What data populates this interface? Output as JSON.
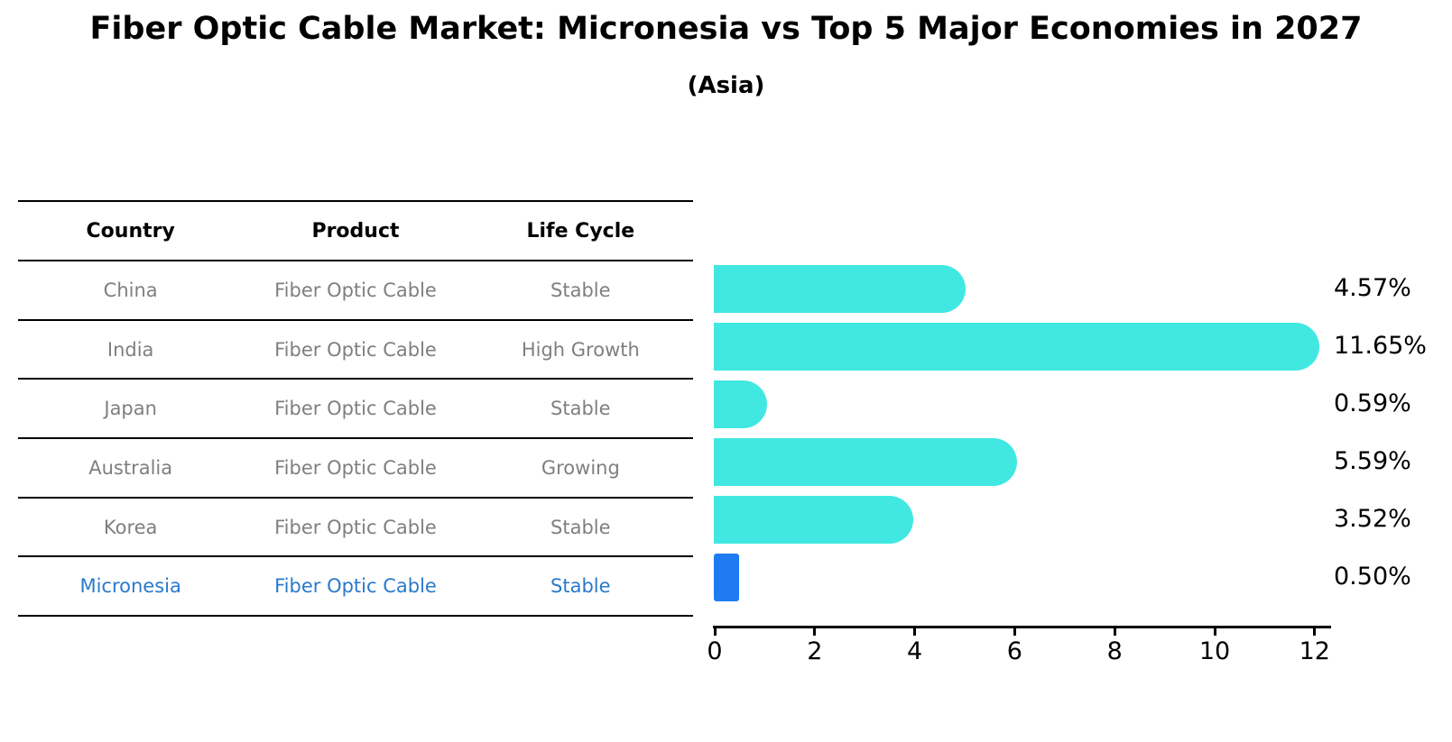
{
  "title": "Fiber Optic Cable Market: Micronesia vs Top 5 Major Economies in 2027",
  "subtitle": "(Asia)",
  "table": {
    "headers": [
      "Country",
      "Product",
      "Life Cycle"
    ],
    "rows": [
      {
        "country": "China",
        "product": "Fiber Optic Cable",
        "life_cycle": "Stable",
        "highlight": false
      },
      {
        "country": "India",
        "product": "Fiber Optic Cable",
        "life_cycle": "High Growth",
        "highlight": false
      },
      {
        "country": "Japan",
        "product": "Fiber Optic Cable",
        "life_cycle": "Stable",
        "highlight": false
      },
      {
        "country": "Australia",
        "product": "Fiber Optic Cable",
        "life_cycle": "Growing",
        "highlight": false
      },
      {
        "country": "Korea",
        "product": "Fiber Optic Cable",
        "life_cycle": "Stable",
        "highlight": true
      }
    ]
  },
  "chart_data": {
    "type": "bar",
    "orientation": "horizontal",
    "categories": [
      "China",
      "India",
      "Japan",
      "Australia",
      "Korea",
      "Micronesia"
    ],
    "values": [
      4.57,
      11.65,
      0.59,
      5.59,
      3.52,
      0.5
    ],
    "value_labels": [
      "4.57%",
      "11.65%",
      "0.59%",
      "5.59%",
      "3.52%",
      "0.50%"
    ],
    "highlight_index": 5,
    "xlim": [
      0,
      12
    ],
    "xticks": [
      "0",
      "2",
      "4",
      "6",
      "8",
      "10",
      "12"
    ],
    "grid": false,
    "legend": false,
    "bar_color": "#40e8e1",
    "highlight_color": "#1e7bf2",
    "highlight_text_color": "#2a79cc",
    "table_text_color": "#7f7f7f"
  }
}
